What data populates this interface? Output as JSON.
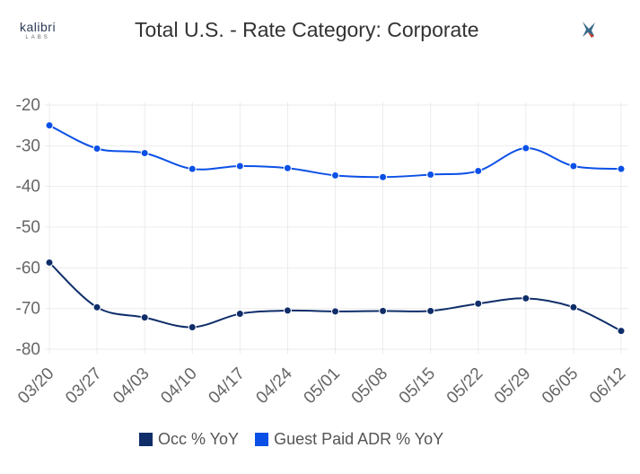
{
  "logo": {
    "name": "kalibri",
    "sub": "LABS"
  },
  "chart_data": {
    "type": "line",
    "title": "Total U.S. - Rate Category: Corporate",
    "xlabel": "",
    "ylabel": "",
    "ylim": [
      -80,
      -20
    ],
    "yticks": [
      -20,
      -30,
      -40,
      -50,
      -60,
      -70,
      -80
    ],
    "grid": true,
    "legend_position": "bottom",
    "categories": [
      "03/20",
      "03/27",
      "04/03",
      "04/10",
      "04/17",
      "04/24",
      "05/01",
      "05/08",
      "05/15",
      "05/22",
      "05/29",
      "06/05",
      "06/12"
    ],
    "series": [
      {
        "name": "Occ % YoY",
        "color": "#0f2d69",
        "values": [
          -58.7,
          -69.7,
          -72.2,
          -74.6,
          -71.3,
          -70.5,
          -70.7,
          -70.6,
          -70.6,
          -68.8,
          -67.5,
          -69.7,
          -75.5
        ]
      },
      {
        "name": "Guest Paid ADR % YoY",
        "color": "#0b50e6",
        "values": [
          -25,
          -30.7,
          -31.8,
          -35.7,
          -35,
          -35.5,
          -37.3,
          -37.7,
          -37.1,
          -36.2,
          -30.6,
          -35,
          -35.7
        ]
      }
    ]
  }
}
